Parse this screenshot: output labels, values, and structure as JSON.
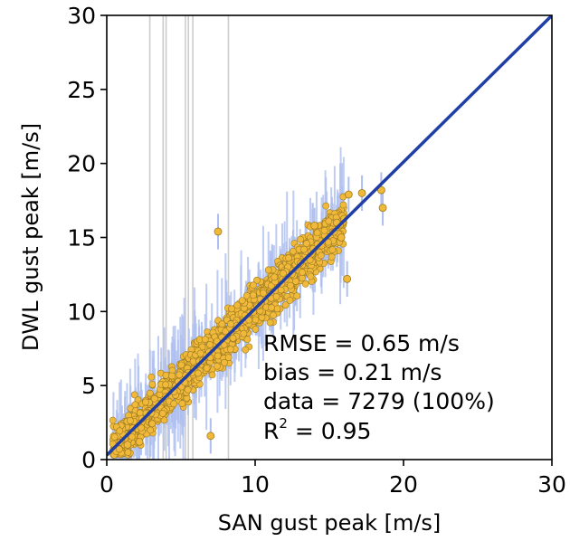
{
  "chart_data": {
    "type": "scatter",
    "xlabel": "SAN gust peak [m/s]",
    "ylabel": "DWL gust peak [m/s]",
    "xlim": [
      0,
      30
    ],
    "ylim": [
      0,
      30
    ],
    "x_ticks": [
      "0",
      "10",
      "20",
      "30"
    ],
    "y_ticks": [
      "0",
      "5",
      "10",
      "15",
      "20",
      "25",
      "30"
    ],
    "grid": false,
    "colors": {
      "points": "#f0b93a",
      "point_edge": "#9c7a22",
      "error_bars": "#aebff0",
      "fit_line": "#1f3fa6",
      "outlier_lines": "#cccccc"
    },
    "fit_line": {
      "x": [
        0,
        30
      ],
      "y": [
        0.3,
        30.0
      ]
    },
    "vertical_lines_x": [
      2.9,
      3.8,
      4.0,
      5.3,
      5.5,
      5.8,
      8.2
    ],
    "highlighted_points": [
      {
        "x": 7.0,
        "y": 1.6
      },
      {
        "x": 2.2,
        "y": 1.2
      },
      {
        "x": 1.4,
        "y": 1.0
      },
      {
        "x": 7.5,
        "y": 15.4
      },
      {
        "x": 16.3,
        "y": 17.9
      },
      {
        "x": 17.2,
        "y": 18.0
      },
      {
        "x": 18.5,
        "y": 18.2
      },
      {
        "x": 18.6,
        "y": 17.0
      },
      {
        "x": 16.2,
        "y": 12.2
      },
      {
        "x": 15.8,
        "y": 15.0
      },
      {
        "x": 15.5,
        "y": 16.0
      },
      {
        "x": 14.0,
        "y": 15.8
      }
    ],
    "annotations": {
      "rmse": "RMSE = 0.65 m/s",
      "bias": "bias = 0.21 m/s",
      "data": "data = 7279 (100%)",
      "r2_base": "R",
      "r2_sup": "2",
      "r2_value": " = 0.95"
    }
  }
}
